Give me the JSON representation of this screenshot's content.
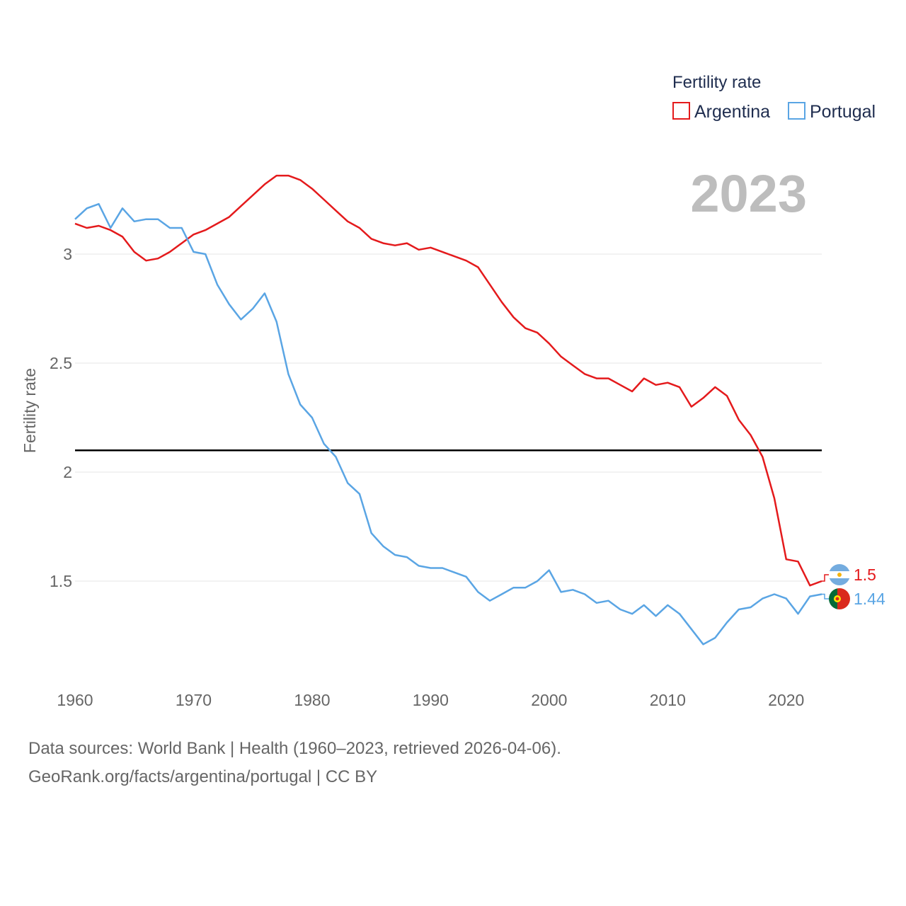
{
  "chart_data": {
    "type": "line",
    "title": "",
    "current_year": "2023",
    "ylabel": "Fertility rate",
    "xlabel": "",
    "xlim": [
      1960,
      2023
    ],
    "ylim": [
      1.0,
      3.5
    ],
    "y_ticks": [
      1.5,
      2,
      2.5,
      3
    ],
    "y_tick_labels": [
      "1.5",
      "2",
      "2.5",
      "3"
    ],
    "x_ticks": [
      1960,
      1970,
      1980,
      1990,
      2000,
      2010,
      2020
    ],
    "x_tick_labels": [
      "1960",
      "1970",
      "1980",
      "1990",
      "2000",
      "2010",
      "2020"
    ],
    "reference_line": {
      "value": 2.1,
      "color": "#000000"
    },
    "legend": {
      "title": "Fertility rate",
      "placement": "top-right"
    },
    "x": [
      1960,
      1961,
      1962,
      1963,
      1964,
      1965,
      1966,
      1967,
      1968,
      1969,
      1970,
      1971,
      1972,
      1973,
      1974,
      1975,
      1976,
      1977,
      1978,
      1979,
      1980,
      1981,
      1982,
      1983,
      1984,
      1985,
      1986,
      1987,
      1988,
      1989,
      1990,
      1991,
      1992,
      1993,
      1994,
      1995,
      1996,
      1997,
      1998,
      1999,
      2000,
      2001,
      2002,
      2003,
      2004,
      2005,
      2006,
      2007,
      2008,
      2009,
      2010,
      2011,
      2012,
      2013,
      2014,
      2015,
      2016,
      2017,
      2018,
      2019,
      2020,
      2021,
      2022,
      2023
    ],
    "series": [
      {
        "name": "Argentina",
        "color": "#e41a1c",
        "end_label": "1.5",
        "flag": "argentina-flag-icon",
        "values": [
          3.14,
          3.12,
          3.13,
          3.11,
          3.08,
          3.01,
          2.97,
          2.98,
          3.01,
          3.05,
          3.09,
          3.11,
          3.14,
          3.17,
          3.22,
          3.27,
          3.32,
          3.36,
          3.36,
          3.34,
          3.3,
          3.25,
          3.2,
          3.15,
          3.12,
          3.07,
          3.05,
          3.04,
          3.05,
          3.02,
          3.03,
          3.01,
          2.99,
          2.97,
          2.94,
          2.86,
          2.78,
          2.71,
          2.66,
          2.64,
          2.59,
          2.53,
          2.49,
          2.45,
          2.43,
          2.43,
          2.4,
          2.37,
          2.43,
          2.4,
          2.41,
          2.39,
          2.3,
          2.34,
          2.39,
          2.35,
          2.24,
          2.17,
          2.07,
          1.88,
          1.6,
          1.59,
          1.48,
          1.5
        ]
      },
      {
        "name": "Portugal",
        "color": "#5aa5e4",
        "end_label": "1.44",
        "flag": "portugal-flag-icon",
        "values": [
          3.16,
          3.21,
          3.23,
          3.12,
          3.21,
          3.15,
          3.16,
          3.16,
          3.12,
          3.12,
          3.01,
          3.0,
          2.86,
          2.77,
          2.7,
          2.75,
          2.82,
          2.69,
          2.45,
          2.31,
          2.25,
          2.13,
          2.07,
          1.95,
          1.9,
          1.72,
          1.66,
          1.62,
          1.61,
          1.57,
          1.56,
          1.56,
          1.54,
          1.52,
          1.45,
          1.41,
          1.44,
          1.47,
          1.47,
          1.5,
          1.55,
          1.45,
          1.46,
          1.44,
          1.4,
          1.41,
          1.37,
          1.35,
          1.39,
          1.34,
          1.39,
          1.35,
          1.28,
          1.21,
          1.24,
          1.31,
          1.37,
          1.38,
          1.42,
          1.44,
          1.42,
          1.35,
          1.43,
          1.44
        ]
      }
    ]
  },
  "footer": {
    "source_line": "Data sources: World Bank | Health (1960–2023, retrieved 2026-04-06).",
    "credit_line": "GeoRank.org/facts/argentina/portugal | CC BY"
  }
}
